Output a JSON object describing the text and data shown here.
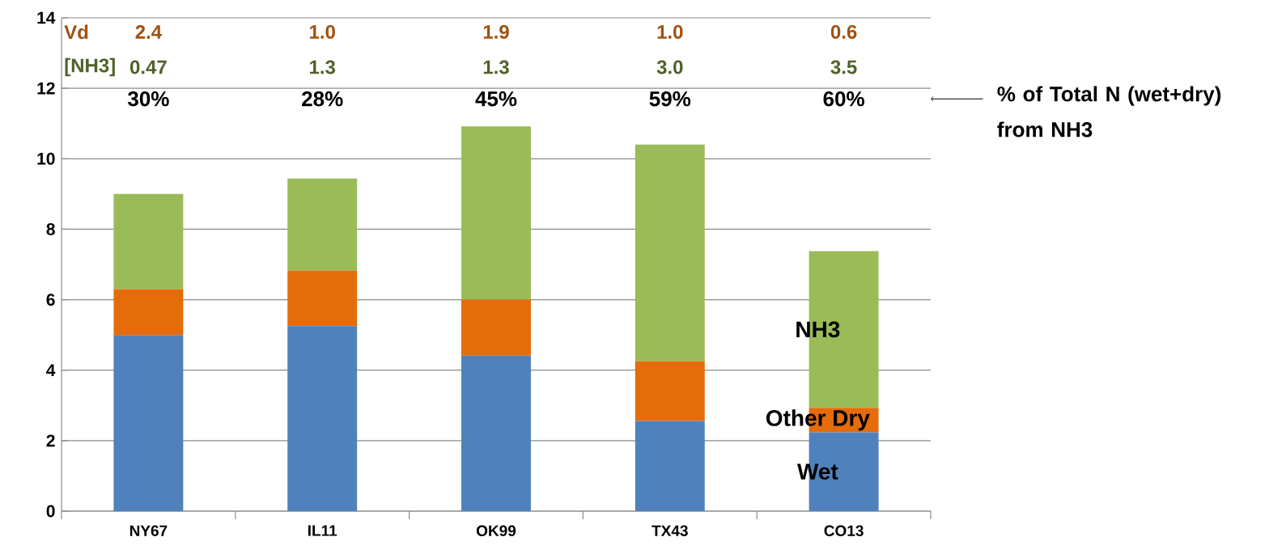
{
  "chart_data": {
    "type": "bar",
    "stacked": true,
    "categories": [
      "NY67",
      "IL11",
      "OK99",
      "TX43",
      "CO13"
    ],
    "series": [
      {
        "name": "Wet",
        "color": "#4f81bd",
        "values": [
          5.0,
          5.25,
          4.41,
          2.56,
          2.24
        ]
      },
      {
        "name": "Other Dry",
        "color": "#e46c0a",
        "values": [
          1.3,
          1.58,
          1.59,
          1.7,
          0.69
        ]
      },
      {
        "name": "NH3",
        "color": "#9bbb59",
        "values": [
          2.7,
          2.61,
          4.92,
          6.14,
          4.45
        ]
      }
    ],
    "ylim": [
      0,
      14
    ],
    "yticks": [
      0,
      2,
      4,
      6,
      8,
      10,
      12,
      14
    ],
    "grid": "y",
    "annotations": [
      "Vd",
      "2.4",
      "1.0",
      "1.9",
      "1.0",
      "0.6",
      "[NH3]",
      "0.47",
      "1.3",
      "1.3",
      "3.0",
      "3.5",
      "30%",
      "28%",
      "45%",
      "59%",
      "60%",
      "% of Total N (wet+dry) from NH3"
    ]
  }
}
